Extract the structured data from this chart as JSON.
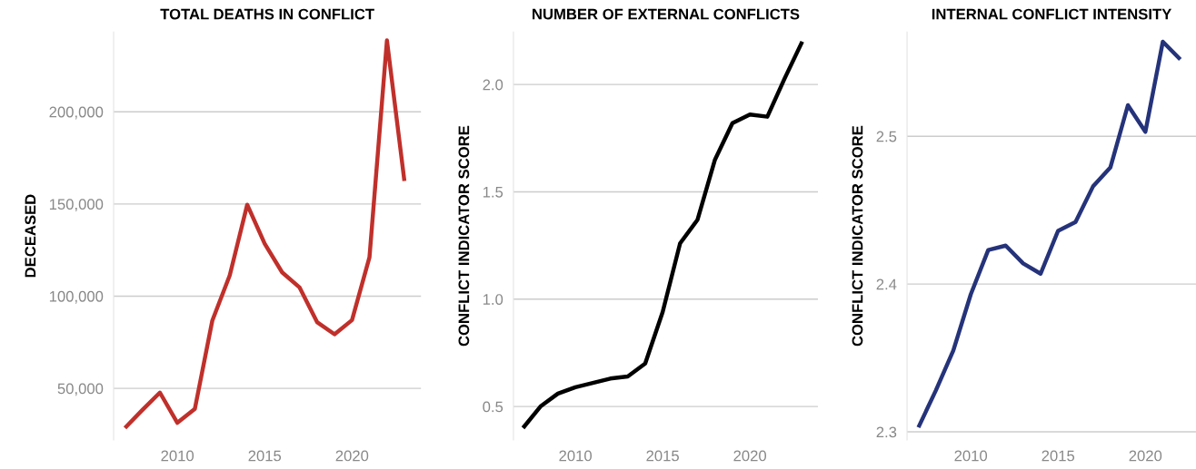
{
  "chart_data": [
    {
      "type": "line",
      "title": "TOTAL DEATHS IN CONFLICT",
      "ylabel": "DECEASED",
      "x": [
        2007,
        2008,
        2009,
        2010,
        2011,
        2012,
        2013,
        2014,
        2015,
        2016,
        2017,
        2018,
        2019,
        2020,
        2021,
        2022,
        2023
      ],
      "series": [
        {
          "color": "#c0302b",
          "values": [
            28500,
            38300,
            47700,
            31300,
            38800,
            86700,
            111300,
            149600,
            128500,
            112900,
            104700,
            85900,
            79300,
            87000,
            121100,
            238700,
            162500
          ]
        }
      ],
      "xlim": [
        2006.35,
        2023.95
      ],
      "ylim": [
        22000,
        243300
      ],
      "xticks": [
        2010,
        2015,
        2020
      ],
      "yticks": [
        {
          "value": 50000,
          "label": "50,000"
        },
        {
          "value": 100000,
          "label": "100,000"
        },
        {
          "value": 150000,
          "label": "150,000"
        },
        {
          "value": 200000,
          "label": "200,000"
        }
      ],
      "grid": "y"
    },
    {
      "type": "line",
      "title": "NUMBER OF EXTERNAL CONFLICTS",
      "ylabel": "CONFLICT INDICATOR SCORE",
      "x": [
        2007,
        2008,
        2009,
        2010,
        2011,
        2012,
        2013,
        2014,
        2015,
        2016,
        2017,
        2018,
        2019,
        2020,
        2021,
        2022,
        2023
      ],
      "series": [
        {
          "color": "#000000",
          "values": [
            0.4,
            0.5,
            0.56,
            0.59,
            0.61,
            0.63,
            0.64,
            0.7,
            0.94,
            1.26,
            1.37,
            1.65,
            1.82,
            1.86,
            1.85,
            2.03,
            2.2
          ]
        }
      ],
      "xlim": [
        2006.45,
        2023.9
      ],
      "ylim": [
        0.344,
        2.245
      ],
      "xticks": [
        2010,
        2015,
        2020
      ],
      "yticks": [
        {
          "value": 0.5,
          "label": "0.5"
        },
        {
          "value": 1.0,
          "label": "1.0"
        },
        {
          "value": 1.5,
          "label": "1.5"
        },
        {
          "value": 2.0,
          "label": "2.0"
        }
      ],
      "grid": "y"
    },
    {
      "type": "line",
      "title": "INTERNAL CONFLICT INTENSITY",
      "ylabel": "CONFLICT INDICATOR SCORE",
      "x": [
        2007,
        2008,
        2009,
        2010,
        2011,
        2012,
        2013,
        2014,
        2015,
        2016,
        2017,
        2018,
        2019,
        2020,
        2021,
        2022
      ],
      "series": [
        {
          "color": "#25337a",
          "values": [
            2.303,
            2.328,
            2.355,
            2.393,
            2.423,
            2.426,
            2.414,
            2.407,
            2.436,
            2.442,
            2.466,
            2.479,
            2.521,
            2.503,
            2.564,
            2.552
          ]
        }
      ],
      "xlim": [
        2006.35,
        2022.9
      ],
      "ylim": [
        2.2945,
        2.5706
      ],
      "xticks": [
        2010,
        2015,
        2020
      ],
      "yticks": [
        2.3,
        2.4,
        2.5
      ],
      "grid": "y"
    }
  ]
}
